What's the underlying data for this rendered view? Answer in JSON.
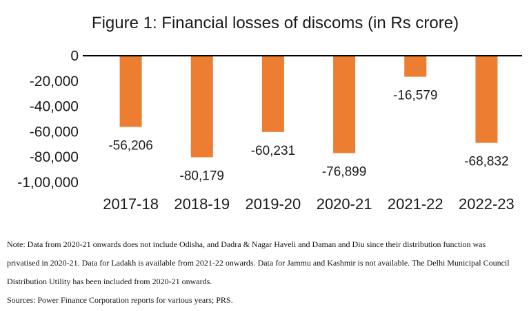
{
  "chart_data": {
    "type": "bar",
    "title": "Figure 1: Financial losses of discoms (in Rs crore)",
    "categories": [
      "2017-18",
      "2018-19",
      "2019-20",
      "2020-21",
      "2021-22",
      "2022-23"
    ],
    "values": [
      -56206,
      -80179,
      -60231,
      -76899,
      -16579,
      -68832
    ],
    "value_labels": [
      "-56,206",
      "-80,179",
      "-60,231",
      "-76,899",
      "-16,579",
      "-68,832"
    ],
    "yticks": [
      0,
      -20000,
      -40000,
      -60000,
      -80000,
      -100000
    ],
    "ytick_labels": [
      "0",
      "-20,000",
      "-40,000",
      "-60,000",
      "-80,000",
      "-1,00,000"
    ],
    "ylim": [
      -100000,
      0
    ],
    "xlabel": "",
    "ylabel": "",
    "grid": false,
    "bar_color": "#ED7D31"
  },
  "notes": {
    "note": "Note: Data from 2020-21 onwards does not include Odisha, and Dadra & Nagar Haveli and Daman and Diu since their distribution function was privatised in 2020-21.  Data for Ladakh is available from 2021-22 onwards.  Data for Jammu and Kashmir is not available.  The Delhi Municipal Council Distribution Utility has been included from 2020-21 onwards.",
    "sources": "Sources: Power Finance Corporation reports for various years; PRS."
  }
}
